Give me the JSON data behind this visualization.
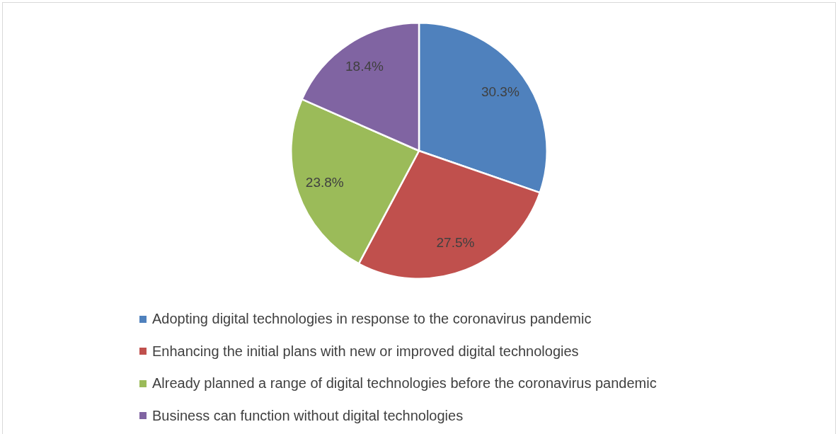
{
  "chart_data": {
    "type": "pie",
    "categories": [
      "Adopting digital technologies in response to the coronavirus pandemic",
      "Enhancing the initial plans with new or improved digital technologies",
      "Already planned a range of digital technologies before the coronavirus pandemic",
      "Business can function without digital technologies"
    ],
    "values": [
      30.3,
      27.5,
      23.8,
      18.4
    ],
    "colors": [
      "#4f81bd",
      "#c0504d",
      "#9bbb59",
      "#8064a2"
    ],
    "value_labels": [
      "30.3%",
      "27.5%",
      "23.8%",
      "18.4%"
    ],
    "legend": "bottom"
  }
}
